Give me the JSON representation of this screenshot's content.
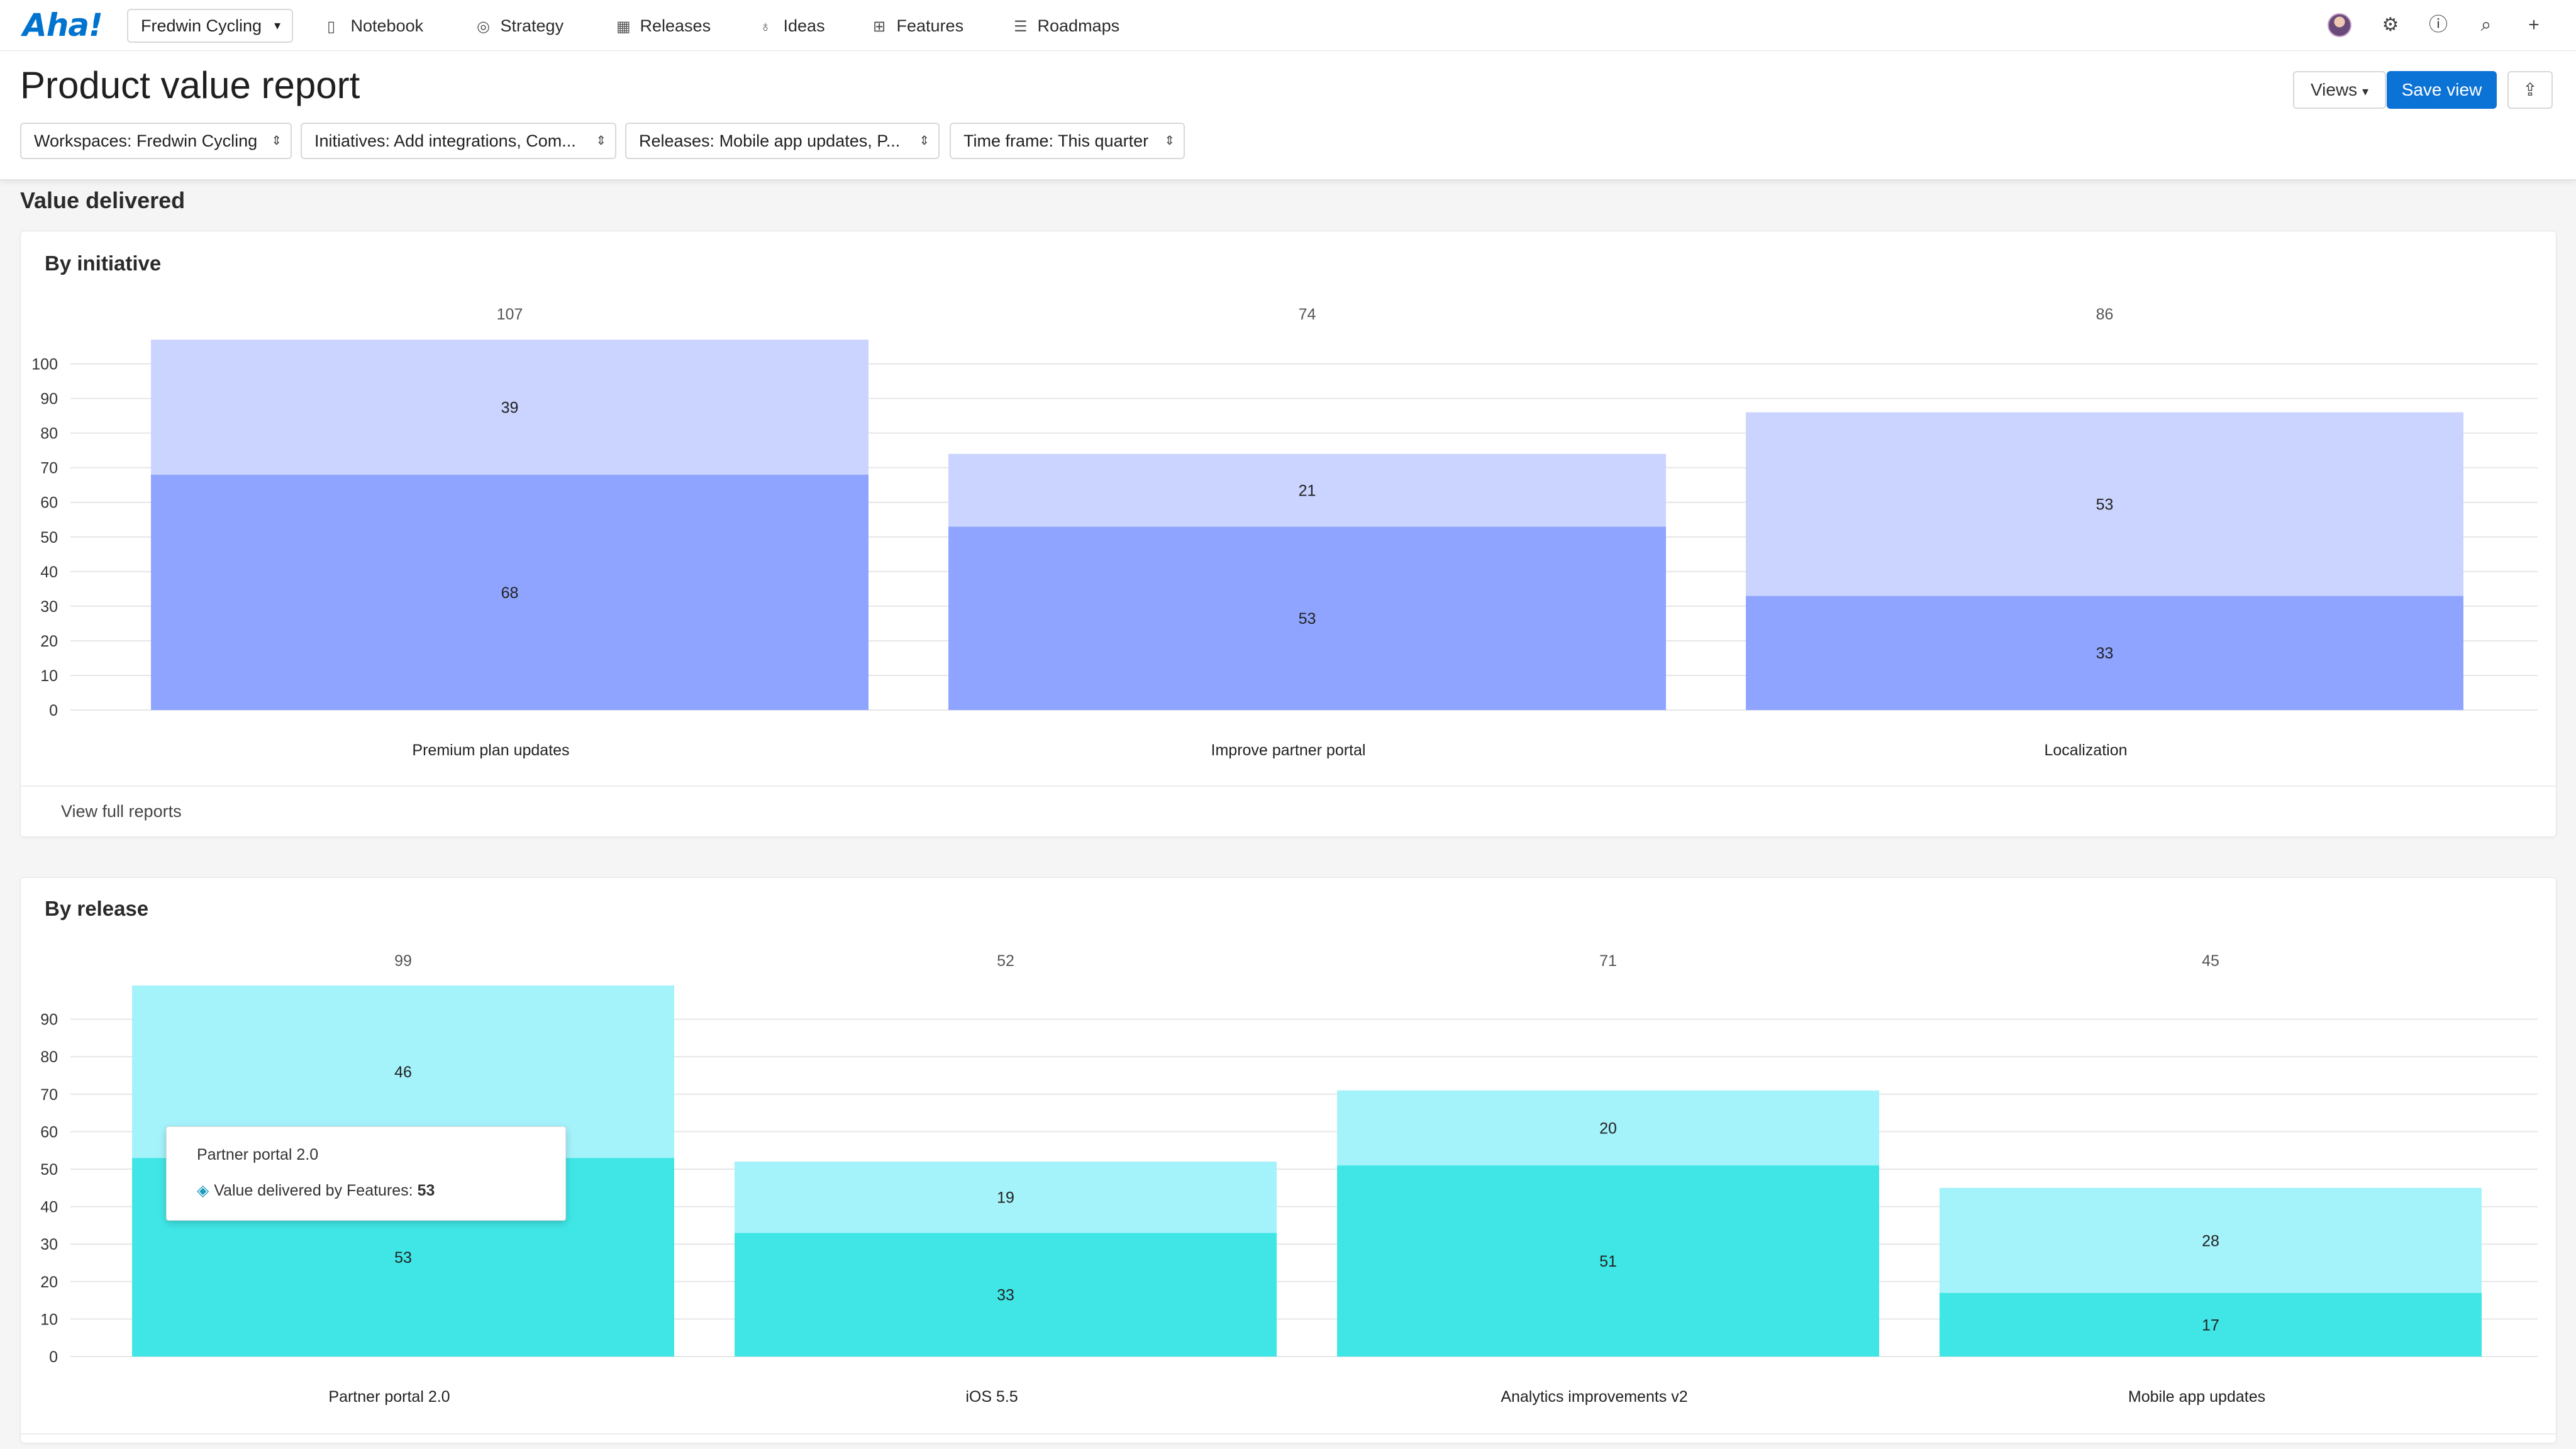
{
  "app": {
    "logo": "Aha!",
    "workspace": "Fredwin Cycling",
    "nav": [
      {
        "label": "Notebook",
        "icon": "notebook-icon",
        "glyph": "▯"
      },
      {
        "label": "Strategy",
        "icon": "target-icon",
        "glyph": "◎"
      },
      {
        "label": "Releases",
        "icon": "calendar-icon",
        "glyph": "▦"
      },
      {
        "label": "Ideas",
        "icon": "lightbulb-icon",
        "glyph": "♁"
      },
      {
        "label": "Features",
        "icon": "grid-icon",
        "glyph": "⊞"
      },
      {
        "label": "Roadmaps",
        "icon": "roadmap-icon",
        "glyph": "☰"
      }
    ]
  },
  "header": {
    "title": "Product value report",
    "views_label": "Views",
    "save_label": "Save view",
    "filters": [
      "Workspaces: Fredwin Cycling",
      "Initiatives: Add integrations, Com...",
      "Releases: Mobile app updates, P...",
      "Time frame: This quarter"
    ]
  },
  "section": {
    "title": "Value delivered"
  },
  "colors": {
    "initiative_bottom": "#8fa4fe",
    "initiative_top": "#cbd4fe",
    "release_bottom": "#40e6e6",
    "release_top": "#a4f2fa",
    "accent": "#0b72d6"
  },
  "cards": {
    "initiative": {
      "title": "By initiative",
      "footer_link": "View full reports"
    },
    "release": {
      "title": "By release"
    }
  },
  "chart_data": [
    {
      "type": "bar",
      "stacked": true,
      "title": "By initiative",
      "categories": [
        "Premium plan updates",
        "Improve partner portal",
        "Localization"
      ],
      "totals": [
        107,
        74,
        86
      ],
      "series": [
        {
          "values": [
            68,
            53,
            33
          ]
        },
        {
          "values": [
            39,
            21,
            53
          ]
        }
      ],
      "ylim": [
        0,
        107
      ],
      "yticks": [
        0,
        10,
        20,
        30,
        40,
        50,
        60,
        70,
        80,
        90,
        100
      ],
      "grid": true
    },
    {
      "type": "bar",
      "stacked": true,
      "title": "By release",
      "categories": [
        "Partner portal 2.0",
        "iOS 5.5",
        "Analytics improvements v2",
        "Mobile app updates"
      ],
      "totals": [
        99,
        52,
        71,
        45
      ],
      "series": [
        {
          "name": "Value delivered by Features",
          "values": [
            53,
            33,
            51,
            17
          ]
        },
        {
          "values": [
            46,
            19,
            20,
            28
          ]
        }
      ],
      "ylim": [
        0,
        99
      ],
      "yticks": [
        0,
        10,
        20,
        30,
        40,
        50,
        60,
        70,
        80,
        90
      ],
      "grid": true
    }
  ],
  "tooltip": {
    "title": "Partner portal 2.0",
    "label": "Value delivered by Features: ",
    "value": "53"
  }
}
